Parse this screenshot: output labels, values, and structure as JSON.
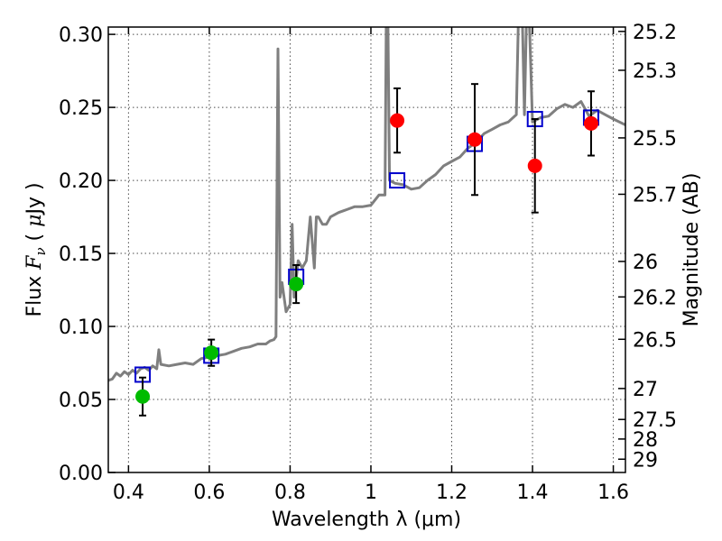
{
  "chart_data": {
    "type": "scatter",
    "xlabel": "Wavelength  λ (μm)",
    "ylabel": "Flux  F_ν  ( μJy )",
    "ylabel_parts": {
      "pre": "Flux  ",
      "f": "F",
      "sub": "ν",
      "post": "  ( ",
      "mu": "μ",
      "unit": "Jy )"
    },
    "y2label": "Magnitude (AB)",
    "xlim": [
      0.35,
      1.63
    ],
    "ylim": [
      0.0,
      0.305
    ],
    "xticks": [
      0.4,
      0.6,
      0.8,
      1.0,
      1.2,
      1.4,
      1.6
    ],
    "xtick_labels": [
      "0.4",
      "0.6",
      "0.8",
      "1",
      "1.2",
      "1.4",
      "1.6"
    ],
    "yticks": [
      0.0,
      0.05,
      0.1,
      0.15,
      0.2,
      0.25,
      0.3
    ],
    "ytick_labels": [
      "0.00",
      "0.05",
      "0.10",
      "0.15",
      "0.20",
      "0.25",
      "0.30"
    ],
    "mag_ticks": [
      {
        "label": "25.2",
        "flux": 0.302
      },
      {
        "label": "25.3",
        "flux": 0.2754
      },
      {
        "label": "25.5",
        "flux": 0.2291
      },
      {
        "label": "25.7",
        "flux": 0.1905
      },
      {
        "label": "26",
        "flux": 0.1445
      },
      {
        "label": "26.2",
        "flux": 0.1202
      },
      {
        "label": "26.5",
        "flux": 0.0912
      },
      {
        "label": "27",
        "flux": 0.0575
      },
      {
        "label": "27.5",
        "flux": 0.0363
      },
      {
        "label": "28",
        "flux": 0.0229
      },
      {
        "label": "29",
        "flux": 0.0091
      }
    ],
    "grid": true,
    "model_spectrum": {
      "color": "#7f7f7f",
      "points": [
        [
          0.35,
          0.063
        ],
        [
          0.36,
          0.064
        ],
        [
          0.37,
          0.068
        ],
        [
          0.38,
          0.066
        ],
        [
          0.39,
          0.069
        ],
        [
          0.4,
          0.067
        ],
        [
          0.41,
          0.07
        ],
        [
          0.42,
          0.068
        ],
        [
          0.43,
          0.071
        ],
        [
          0.44,
          0.072
        ],
        [
          0.45,
          0.07
        ],
        [
          0.46,
          0.073
        ],
        [
          0.47,
          0.071
        ],
        [
          0.475,
          0.084
        ],
        [
          0.48,
          0.074
        ],
        [
          0.5,
          0.073
        ],
        [
          0.52,
          0.074
        ],
        [
          0.54,
          0.075
        ],
        [
          0.56,
          0.074
        ],
        [
          0.58,
          0.078
        ],
        [
          0.6,
          0.079
        ],
        [
          0.62,
          0.08
        ],
        [
          0.64,
          0.081
        ],
        [
          0.66,
          0.083
        ],
        [
          0.68,
          0.085
        ],
        [
          0.7,
          0.086
        ],
        [
          0.72,
          0.088
        ],
        [
          0.74,
          0.088
        ],
        [
          0.75,
          0.09
        ],
        [
          0.76,
          0.091
        ],
        [
          0.765,
          0.093
        ],
        [
          0.77,
          0.29
        ],
        [
          0.775,
          0.12
        ],
        [
          0.78,
          0.13
        ],
        [
          0.79,
          0.11
        ],
        [
          0.8,
          0.115
        ],
        [
          0.805,
          0.17
        ],
        [
          0.81,
          0.12
        ],
        [
          0.82,
          0.145
        ],
        [
          0.83,
          0.14
        ],
        [
          0.84,
          0.145
        ],
        [
          0.845,
          0.16
        ],
        [
          0.85,
          0.175
        ],
        [
          0.86,
          0.14
        ],
        [
          0.865,
          0.175
        ],
        [
          0.87,
          0.175
        ],
        [
          0.88,
          0.17
        ],
        [
          0.89,
          0.17
        ],
        [
          0.9,
          0.175
        ],
        [
          0.92,
          0.178
        ],
        [
          0.94,
          0.18
        ],
        [
          0.96,
          0.182
        ],
        [
          0.98,
          0.182
        ],
        [
          1.0,
          0.183
        ],
        [
          1.02,
          0.19
        ],
        [
          1.035,
          0.19
        ],
        [
          1.038,
          0.31
        ],
        [
          1.042,
          0.31
        ],
        [
          1.046,
          0.2
        ],
        [
          1.06,
          0.198
        ],
        [
          1.08,
          0.197
        ],
        [
          1.1,
          0.194
        ],
        [
          1.12,
          0.195
        ],
        [
          1.14,
          0.2
        ],
        [
          1.16,
          0.204
        ],
        [
          1.18,
          0.21
        ],
        [
          1.2,
          0.213
        ],
        [
          1.22,
          0.216
        ],
        [
          1.24,
          0.222
        ],
        [
          1.26,
          0.226
        ],
        [
          1.28,
          0.232
        ],
        [
          1.3,
          0.235
        ],
        [
          1.32,
          0.238
        ],
        [
          1.34,
          0.24
        ],
        [
          1.36,
          0.245
        ],
        [
          1.365,
          0.31
        ],
        [
          1.375,
          0.31
        ],
        [
          1.38,
          0.245
        ],
        [
          1.385,
          0.31
        ],
        [
          1.392,
          0.31
        ],
        [
          1.4,
          0.24
        ],
        [
          1.42,
          0.243
        ],
        [
          1.44,
          0.244
        ],
        [
          1.46,
          0.249
        ],
        [
          1.48,
          0.252
        ],
        [
          1.5,
          0.25
        ],
        [
          1.52,
          0.254
        ],
        [
          1.54,
          0.244
        ],
        [
          1.56,
          0.248
        ],
        [
          1.58,
          0.245
        ],
        [
          1.6,
          0.242
        ],
        [
          1.63,
          0.238
        ]
      ]
    },
    "model_photometry": {
      "color": "#0000cc",
      "points": [
        [
          0.435,
          0.067
        ],
        [
          0.605,
          0.08
        ],
        [
          0.815,
          0.134
        ],
        [
          1.065,
          0.2
        ],
        [
          1.257,
          0.225
        ],
        [
          1.406,
          0.242
        ],
        [
          1.545,
          0.243
        ]
      ]
    },
    "observed_green": {
      "color": "#00bb00",
      "points": [
        {
          "x": 0.435,
          "y": 0.052,
          "err": 0.013
        },
        {
          "x": 0.605,
          "y": 0.082,
          "err": 0.009
        },
        {
          "x": 0.815,
          "y": 0.129,
          "err": 0.013
        }
      ]
    },
    "observed_red": {
      "color": "#ff0000",
      "points": [
        {
          "x": 1.065,
          "y": 0.241,
          "err": 0.022
        },
        {
          "x": 1.257,
          "y": 0.228,
          "err": 0.038
        },
        {
          "x": 1.406,
          "y": 0.21,
          "err": 0.032
        },
        {
          "x": 1.545,
          "y": 0.239,
          "err": 0.022
        }
      ]
    }
  }
}
